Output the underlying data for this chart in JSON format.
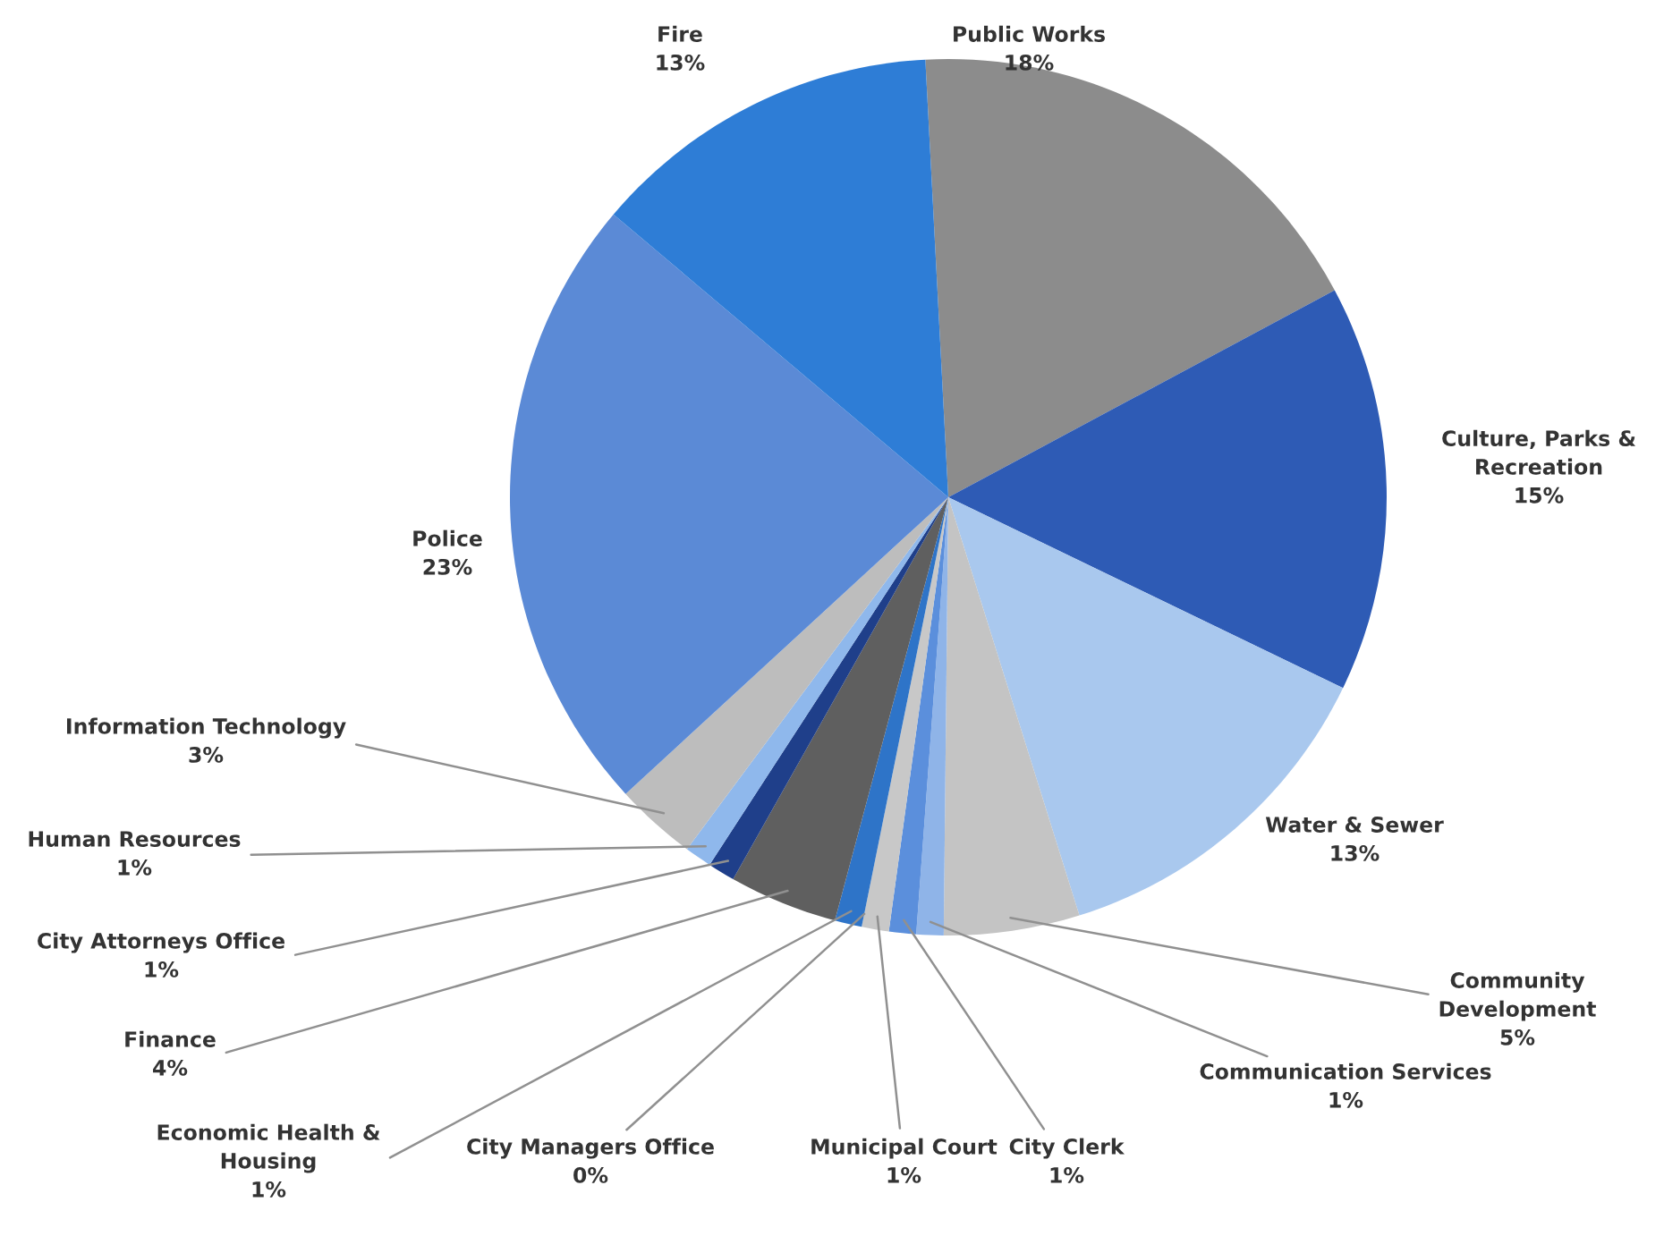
{
  "chart_data": {
    "type": "pie",
    "categories": [
      "Public Works",
      "Culture, Parks &\nRecreation",
      "Water & Sewer",
      "Community\nDevelopment",
      "Communication Services",
      "City Clerk",
      "Municipal Court",
      "City Managers Office",
      "Economic Health &\nHousing",
      "Finance",
      "City Attorneys Office",
      "Human Resources",
      "Information Technology",
      "Police",
      "Fire"
    ],
    "values": [
      18,
      15,
      13,
      5,
      1,
      1,
      1,
      0,
      1,
      4,
      1,
      1,
      3,
      23,
      13
    ],
    "value_labels": [
      "18%",
      "15%",
      "13%",
      "5%",
      "1%",
      "1%",
      "1%",
      "0%",
      "1%",
      "4%",
      "1%",
      "1%",
      "3%",
      "23%",
      "13%"
    ],
    "colors": [
      "#8c8c8c",
      "#2e5bb5",
      "#a9c8ee",
      "#c4c4c4",
      "#8fb4e8",
      "#5b8fdc",
      "#c8c8c8",
      "#a0a0a0",
      "#2e74c8",
      "#5f5f5f",
      "#1f3f8a",
      "#8fb8ec",
      "#bdbdbd",
      "#5b8ad6",
      "#2e7dd6"
    ]
  }
}
